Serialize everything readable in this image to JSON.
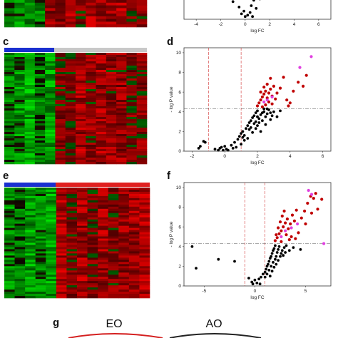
{
  "panels": {
    "c": "c",
    "d": "d",
    "e": "e",
    "f": "f",
    "g": "g"
  },
  "venn": {
    "left": "EO",
    "right": "AO",
    "left_color": "#d42020",
    "right_color": "#222222"
  },
  "colors": {
    "group_control": "#1a2fd0",
    "group_ao": "#c8c8c8",
    "group_eo": "#e02020",
    "sig_point": "#c00000",
    "highlight_point": "#e040e0",
    "ns_point": "#000000",
    "threshold_line": "#d03030",
    "pvalue_line": "#555555"
  },
  "chart_data": [
    {
      "id": "b",
      "type": "scatter",
      "xlabel": "log FC",
      "ylabel": "",
      "xticks": [
        -4,
        -2,
        0,
        2,
        4,
        6
      ],
      "xlim": [
        -5,
        7
      ],
      "points": [
        [
          -1.2,
          1.6
        ],
        [
          -1.0,
          1.3
        ],
        [
          -0.5,
          0.9
        ],
        [
          -0.3,
          0.4
        ],
        [
          0.0,
          0.2
        ],
        [
          0.2,
          0.3
        ],
        [
          0.4,
          0.5
        ],
        [
          0.5,
          1.0
        ],
        [
          0.7,
          1.4
        ],
        [
          0.9,
          0.8
        ],
        [
          1.0,
          1.9
        ],
        [
          1.2,
          1.5
        ],
        [
          1.3,
          2.1
        ],
        [
          -0.1,
          0.6
        ],
        [
          0.6,
          0.2
        ]
      ]
    },
    {
      "id": "d",
      "type": "scatter",
      "xlabel": "log FC",
      "ylabel": "- log P value",
      "xticks": [
        -2,
        0,
        2,
        4,
        6
      ],
      "yticks": [
        0,
        2,
        4,
        6,
        8,
        10
      ],
      "xlim": [
        -2.5,
        6.5
      ],
      "ylim": [
        0,
        10.5
      ],
      "fc_threshold": [
        -1,
        1
      ],
      "p_threshold": 4.3,
      "black_points": [
        [
          -1.3,
          1.0
        ],
        [
          -1.5,
          0.5
        ],
        [
          -1.6,
          0.3
        ],
        [
          -1.2,
          0.9
        ],
        [
          -0.6,
          0.2
        ],
        [
          -0.3,
          0.3
        ],
        [
          -0.1,
          0.1
        ],
        [
          0.1,
          0.2
        ],
        [
          -0.2,
          0.4
        ],
        [
          -0.4,
          0.1
        ],
        [
          0.0,
          0.5
        ],
        [
          0.2,
          0.1
        ],
        [
          0.4,
          0.6
        ],
        [
          0.6,
          0.9
        ],
        [
          0.8,
          1.2
        ],
        [
          0.7,
          0.4
        ],
        [
          0.9,
          1.5
        ],
        [
          1.0,
          1.8
        ],
        [
          1.1,
          2.0
        ],
        [
          1.2,
          1.6
        ],
        [
          1.3,
          2.3
        ],
        [
          1.4,
          2.6
        ],
        [
          1.5,
          2.9
        ],
        [
          1.6,
          3.1
        ],
        [
          1.7,
          3.4
        ],
        [
          1.8,
          3.6
        ],
        [
          1.9,
          3.9
        ],
        [
          2.0,
          4.1
        ],
        [
          1.5,
          2.2
        ],
        [
          1.6,
          2.4
        ],
        [
          1.8,
          2.8
        ],
        [
          1.9,
          3.0
        ],
        [
          2.1,
          3.3
        ],
        [
          2.2,
          3.7
        ],
        [
          2.3,
          3.9
        ],
        [
          2.4,
          4.0
        ],
        [
          1.7,
          1.9
        ],
        [
          1.9,
          2.3
        ],
        [
          2.0,
          2.6
        ],
        [
          2.1,
          2.9
        ],
        [
          2.3,
          3.1
        ],
        [
          2.5,
          3.5
        ],
        [
          2.6,
          3.8
        ],
        [
          2.7,
          4.2
        ],
        [
          2.8,
          3.9
        ],
        [
          2.9,
          3.6
        ],
        [
          3.0,
          4.0
        ],
        [
          2.2,
          2.0
        ],
        [
          2.5,
          2.7
        ],
        [
          2.8,
          3.2
        ],
        [
          3.2,
          3.5
        ],
        [
          3.4,
          4.1
        ],
        [
          1.4,
          1.3
        ],
        [
          1.2,
          1.1
        ],
        [
          1.0,
          0.7
        ],
        [
          2.0,
          3.5
        ],
        [
          2.4,
          4.3
        ],
        [
          2.6,
          4.3
        ],
        [
          1.1,
          1.4
        ],
        [
          0.5,
          0.3
        ]
      ],
      "red_points": [
        [
          2.0,
          4.6
        ],
        [
          2.1,
          4.9
        ],
        [
          2.2,
          5.2
        ],
        [
          2.3,
          5.5
        ],
        [
          2.4,
          5.8
        ],
        [
          2.5,
          6.1
        ],
        [
          2.6,
          5.4
        ],
        [
          2.7,
          5.9
        ],
        [
          2.8,
          6.3
        ],
        [
          2.9,
          5.6
        ],
        [
          3.0,
          6.6
        ],
        [
          2.2,
          6.0
        ],
        [
          2.4,
          6.5
        ],
        [
          2.6,
          6.8
        ],
        [
          2.8,
          7.4
        ],
        [
          3.2,
          5.9
        ],
        [
          3.4,
          6.4
        ],
        [
          3.6,
          7.5
        ],
        [
          3.8,
          5.2
        ],
        [
          4.0,
          4.9
        ],
        [
          4.2,
          6.1
        ],
        [
          4.5,
          7.0
        ],
        [
          4.8,
          6.6
        ],
        [
          5.0,
          7.7
        ],
        [
          2.5,
          4.7
        ],
        [
          2.7,
          5.0
        ],
        [
          3.1,
          5.3
        ],
        [
          2.3,
          4.5
        ],
        [
          3.9,
          4.6
        ],
        [
          2.9,
          4.8
        ]
      ],
      "pink_points": [
        [
          2.4,
          5.0
        ],
        [
          2.6,
          5.2
        ],
        [
          2.9,
          5.5
        ],
        [
          4.6,
          8.5
        ],
        [
          5.3,
          9.6
        ]
      ]
    },
    {
      "id": "f",
      "type": "scatter",
      "xlabel": "log FC",
      "ylabel": "- log P value",
      "xticks": [
        -5,
        0,
        5
      ],
      "yticks": [
        0,
        2,
        4,
        6,
        8,
        10
      ],
      "xlim": [
        -7,
        7.5
      ],
      "ylim": [
        0,
        10.5
      ],
      "fc_threshold": [
        -1,
        1
      ],
      "p_threshold": 4.3,
      "black_points": [
        [
          -6.2,
          4.0
        ],
        [
          -5.8,
          1.8
        ],
        [
          -3.6,
          2.7
        ],
        [
          -2.0,
          2.5
        ],
        [
          -0.6,
          0.8
        ],
        [
          -0.3,
          0.4
        ],
        [
          0.0,
          0.6
        ],
        [
          0.2,
          0.3
        ],
        [
          0.4,
          0.7
        ],
        [
          0.6,
          0.9
        ],
        [
          0.8,
          1.2
        ],
        [
          1.0,
          1.4
        ],
        [
          1.1,
          1.7
        ],
        [
          1.2,
          2.0
        ],
        [
          1.3,
          2.2
        ],
        [
          1.4,
          2.5
        ],
        [
          1.5,
          2.8
        ],
        [
          1.6,
          3.0
        ],
        [
          1.7,
          3.3
        ],
        [
          1.8,
          3.6
        ],
        [
          1.9,
          3.8
        ],
        [
          2.0,
          4.1
        ],
        [
          1.2,
          1.2
        ],
        [
          1.4,
          1.6
        ],
        [
          1.6,
          2.0
        ],
        [
          1.8,
          2.4
        ],
        [
          2.0,
          2.7
        ],
        [
          2.1,
          3.0
        ],
        [
          2.2,
          3.4
        ],
        [
          2.3,
          3.7
        ],
        [
          2.4,
          4.0
        ],
        [
          1.5,
          1.0
        ],
        [
          1.7,
          1.5
        ],
        [
          1.9,
          1.9
        ],
        [
          2.1,
          2.2
        ],
        [
          2.3,
          2.6
        ],
        [
          2.5,
          3.0
        ],
        [
          2.6,
          3.3
        ],
        [
          2.7,
          3.6
        ],
        [
          2.9,
          3.9
        ],
        [
          3.1,
          4.1
        ],
        [
          3.4,
          3.6
        ],
        [
          3.8,
          3.9
        ],
        [
          0.5,
          0.2
        ],
        [
          -0.2,
          0.2
        ],
        [
          2.8,
          3.1
        ],
        [
          3.0,
          3.4
        ],
        [
          1.0,
          0.9
        ],
        [
          4.5,
          3.7
        ]
      ],
      "red_points": [
        [
          2.0,
          4.6
        ],
        [
          2.2,
          4.9
        ],
        [
          2.4,
          5.3
        ],
        [
          2.6,
          5.6
        ],
        [
          2.8,
          6.0
        ],
        [
          3.0,
          6.4
        ],
        [
          3.2,
          6.8
        ],
        [
          2.3,
          5.9
        ],
        [
          2.5,
          6.5
        ],
        [
          2.7,
          7.1
        ],
        [
          2.9,
          7.6
        ],
        [
          3.1,
          5.2
        ],
        [
          3.3,
          5.8
        ],
        [
          3.5,
          6.3
        ],
        [
          3.7,
          7.2
        ],
        [
          3.9,
          6.6
        ],
        [
          4.1,
          7.7
        ],
        [
          4.3,
          5.4
        ],
        [
          4.6,
          6.9
        ],
        [
          4.9,
          7.6
        ],
        [
          5.2,
          8.4
        ],
        [
          5.5,
          9.1
        ],
        [
          5.8,
          8.9
        ],
        [
          6.2,
          7.8
        ],
        [
          6.0,
          9.4
        ],
        [
          6.6,
          8.8
        ],
        [
          2.1,
          5.2
        ],
        [
          3.4,
          4.7
        ],
        [
          4.0,
          4.8
        ],
        [
          2.6,
          4.5
        ],
        [
          3.6,
          5.0
        ],
        [
          5.0,
          6.3
        ],
        [
          5.6,
          7.4
        ]
      ],
      "pink_points": [
        [
          2.6,
          5.0
        ],
        [
          3.0,
          5.6
        ],
        [
          3.6,
          5.9
        ],
        [
          4.2,
          6.3
        ],
        [
          5.3,
          9.7
        ],
        [
          5.6,
          9.3
        ],
        [
          6.8,
          4.3
        ]
      ]
    }
  ]
}
